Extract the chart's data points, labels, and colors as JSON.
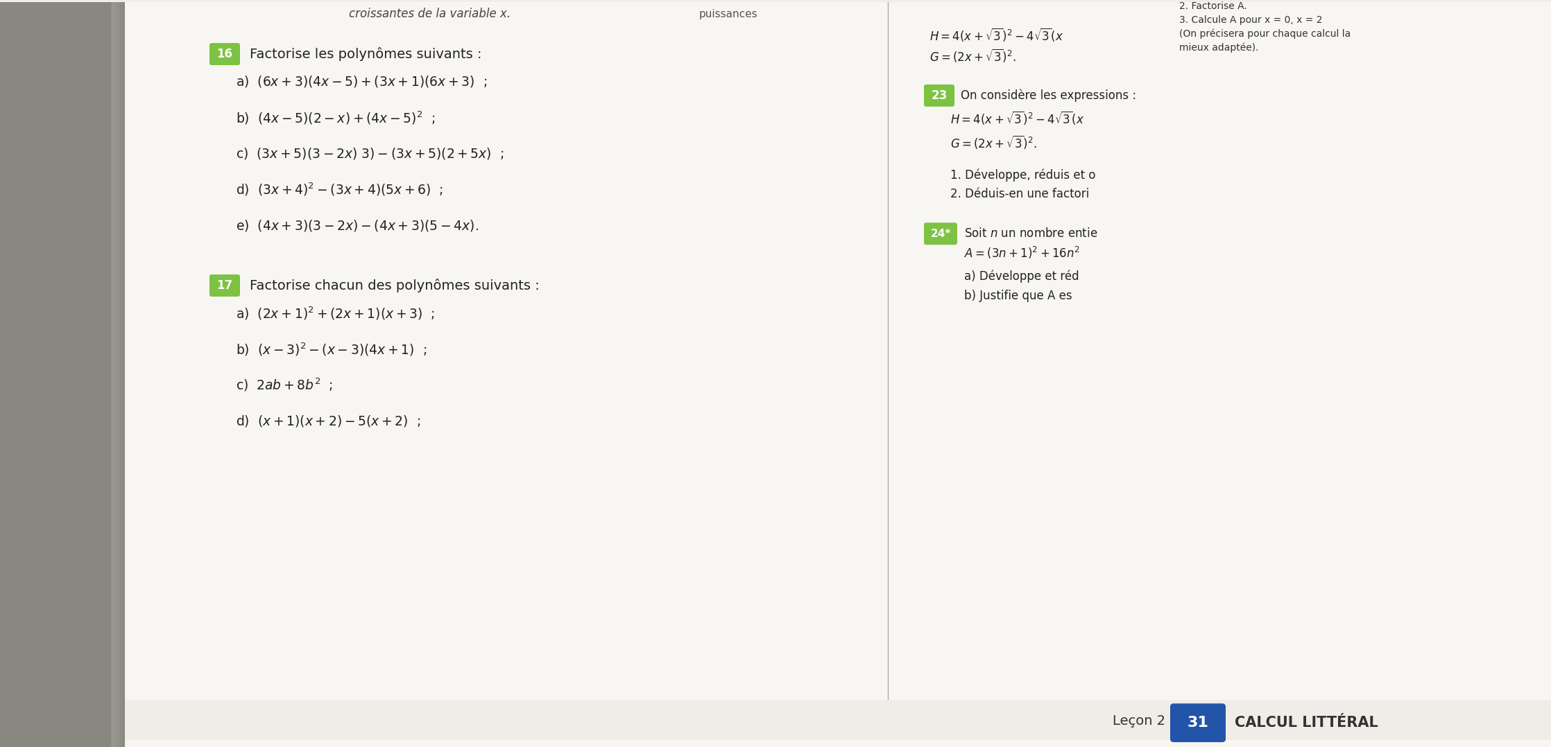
{
  "bg_color": "#f0ede8",
  "left_bg": "#c8c5c0",
  "page_bg": "#f5f2ee",
  "title_top_left": "croissantes de la variable x.",
  "title_top_right": "puissances",
  "top_right_lines": [
    "2. Factorise A.",
    "3. Calcule A pour x = 0, x = 2",
    "(On précisera pour chaque calcul la",
    "mieux adaptée)."
  ],
  "ex16_badge_color": "#7dc242",
  "ex16_badge_text": "16",
  "ex16_title": "Factorise les polynômes suivants :",
  "ex16_items": [
    "a) $(6x + 3)(4x - 5) + (3x + 1)(6x + 3)$ ;",
    "b) $(4x - 5)(2 - x) + (4x - 5)^2$ ;",
    "c) $(3x + 5)(3 - 2x)\\ 3) - (3x + 5)(2 + 5x)$ ;",
    "d) $(3x + 4)^2 - (3x + 4)(5x + 6)$ ;",
    "e) $(4x + 3)(3 - 2x) - (4x + 3)(5 - 4x)$."
  ],
  "ex17_badge_color": "#7dc242",
  "ex17_badge_text": "17",
  "ex17_title": "Factorise chacun des polynômes suivants :",
  "ex17_items": [
    "a) $(2x + 1)^2 + (2x + 1)(x + 3)$ ;",
    "b) $(x - 3)^2 - (x - 3)(4x + 1)$ ;",
    "c) $2ab + 8b^2$ ;",
    "d) $(x + 1)(x + 2) - 5(x + 2)$ ;"
  ],
  "right_col_ex23_badge": "#7dc242",
  "right_col_ex23_text": "23",
  "right_col_ex23_title": "On considère les expressions :",
  "right_col_H": "$H = 4(x + \\sqrt{3})^2 - 4\\sqrt{3}(x$",
  "right_col_G": "$G = (2x + \\sqrt{3})^2$.",
  "right_col_items_23": [
    "1. Développe, réduis et o",
    "2. Déduis-en une factori"
  ],
  "right_col_ex24_badge": "#7dc242",
  "right_col_ex24_text": "24*",
  "right_col_ex24_title": "Soit $n$ un nombre entie",
  "right_col_ex24_A": "$A = (3n + 1)^2 + 16n^2$",
  "right_col_ex24_items": [
    "a) Développe et réd",
    "b) Justifie que A es"
  ],
  "footer_lecon": "Leçon 2",
  "footer_badge_color": "#2255aa",
  "footer_badge_text": "31",
  "footer_title": "CALCUL LITTÉRAL"
}
